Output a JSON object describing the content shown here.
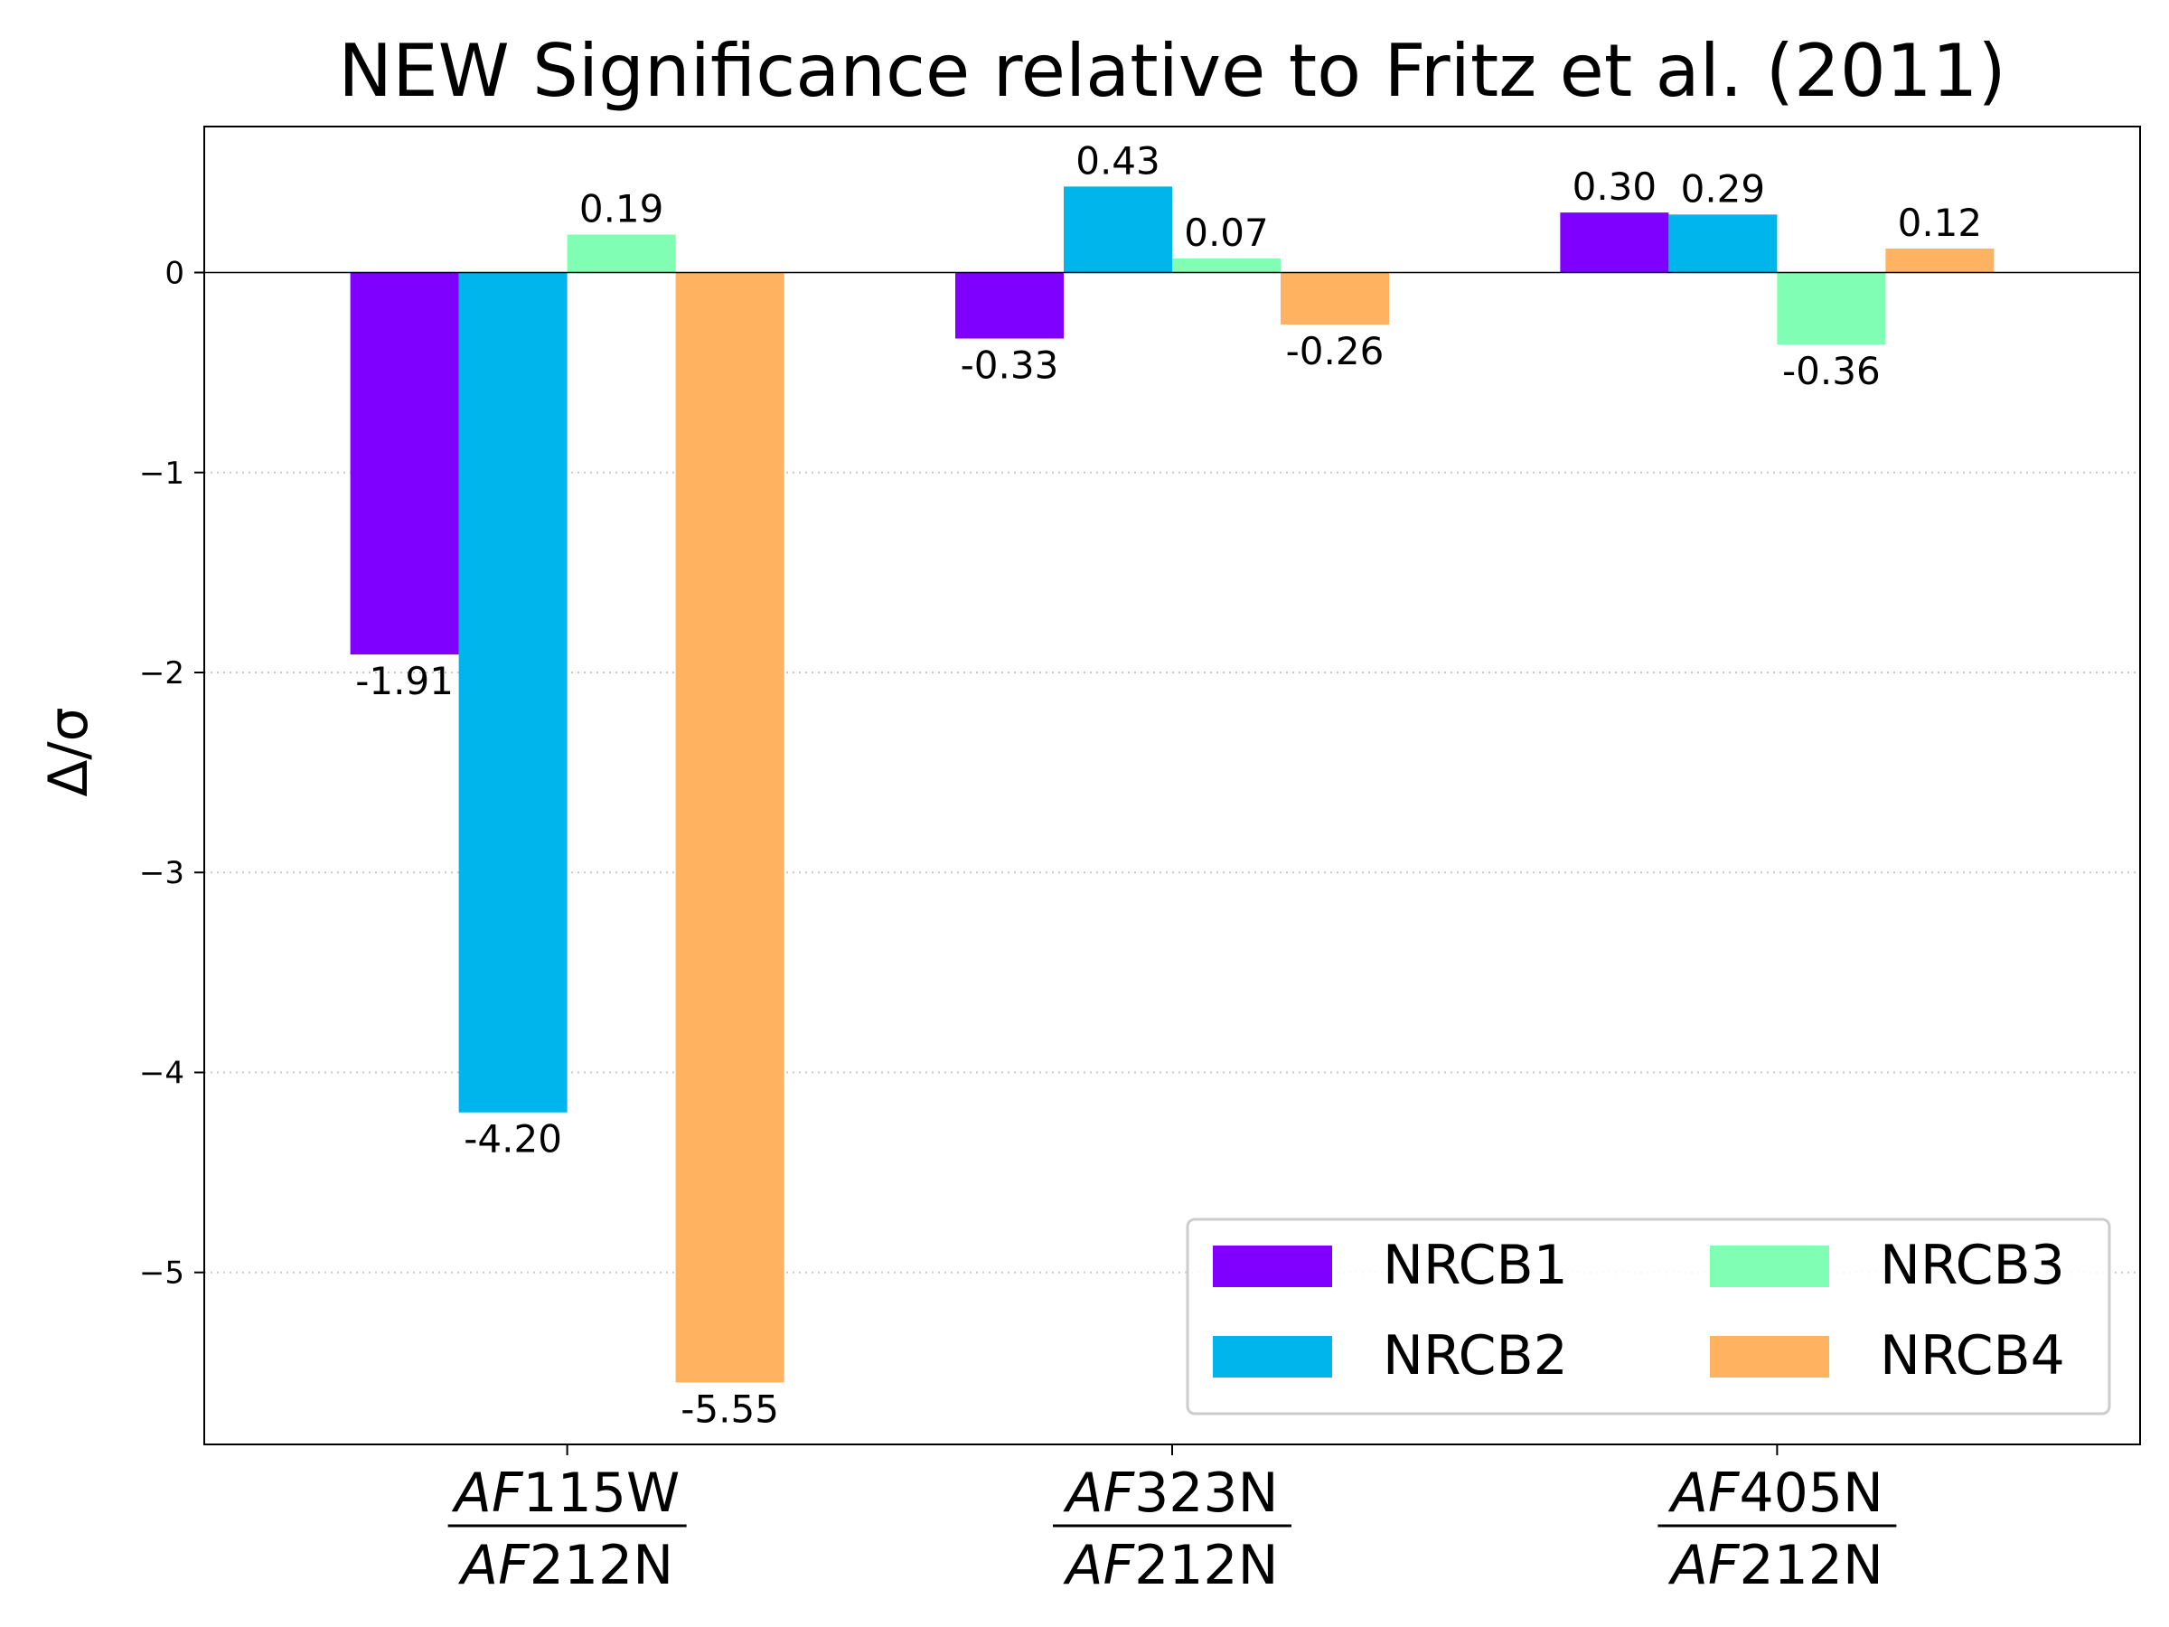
{
  "chart_data": {
    "type": "bar",
    "title": "NEW Significance relative to Fritz et al. (2011)",
    "ylabel": "Δ/σ",
    "xlabel": "",
    "categories": [
      {
        "num_it": "AF",
        "num_rest": "115W",
        "den_it": "AF",
        "den_rest": "212N"
      },
      {
        "num_it": "AF",
        "num_rest": "323N",
        "den_it": "AF",
        "den_rest": "212N"
      },
      {
        "num_it": "AF",
        "num_rest": "405N",
        "den_it": "AF",
        "den_rest": "212N"
      }
    ],
    "series": [
      {
        "name": "NRCB1",
        "color": "#8000ff",
        "values": [
          -1.91,
          -0.33,
          0.3
        ],
        "labels": [
          "-1.91",
          "-0.33",
          "0.30"
        ]
      },
      {
        "name": "NRCB2",
        "color": "#00b5eb",
        "values": [
          -4.2,
          0.43,
          0.29
        ],
        "labels": [
          "-4.20",
          "0.43",
          "0.29"
        ]
      },
      {
        "name": "NRCB3",
        "color": "#80ffb4",
        "values": [
          0.19,
          0.07,
          -0.36
        ],
        "labels": [
          "0.19",
          "0.07",
          "-0.36"
        ]
      },
      {
        "name": "NRCB4",
        "color": "#ffb360",
        "values": [
          -5.55,
          -0.26,
          0.12
        ],
        "labels": [
          "-5.55",
          "-0.26",
          "0.12"
        ]
      }
    ],
    "yticks": [
      {
        "value": 0,
        "label": "0"
      },
      {
        "value": -1,
        "label": "−1"
      },
      {
        "value": -2,
        "label": "−2"
      },
      {
        "value": -3,
        "label": "−3"
      },
      {
        "value": -4,
        "label": "−4"
      },
      {
        "value": -5,
        "label": "−5"
      }
    ],
    "ylim": [
      -5.86,
      0.73
    ],
    "grid": "horizontal dotted",
    "legend": "lower-right, 2 columns"
  }
}
